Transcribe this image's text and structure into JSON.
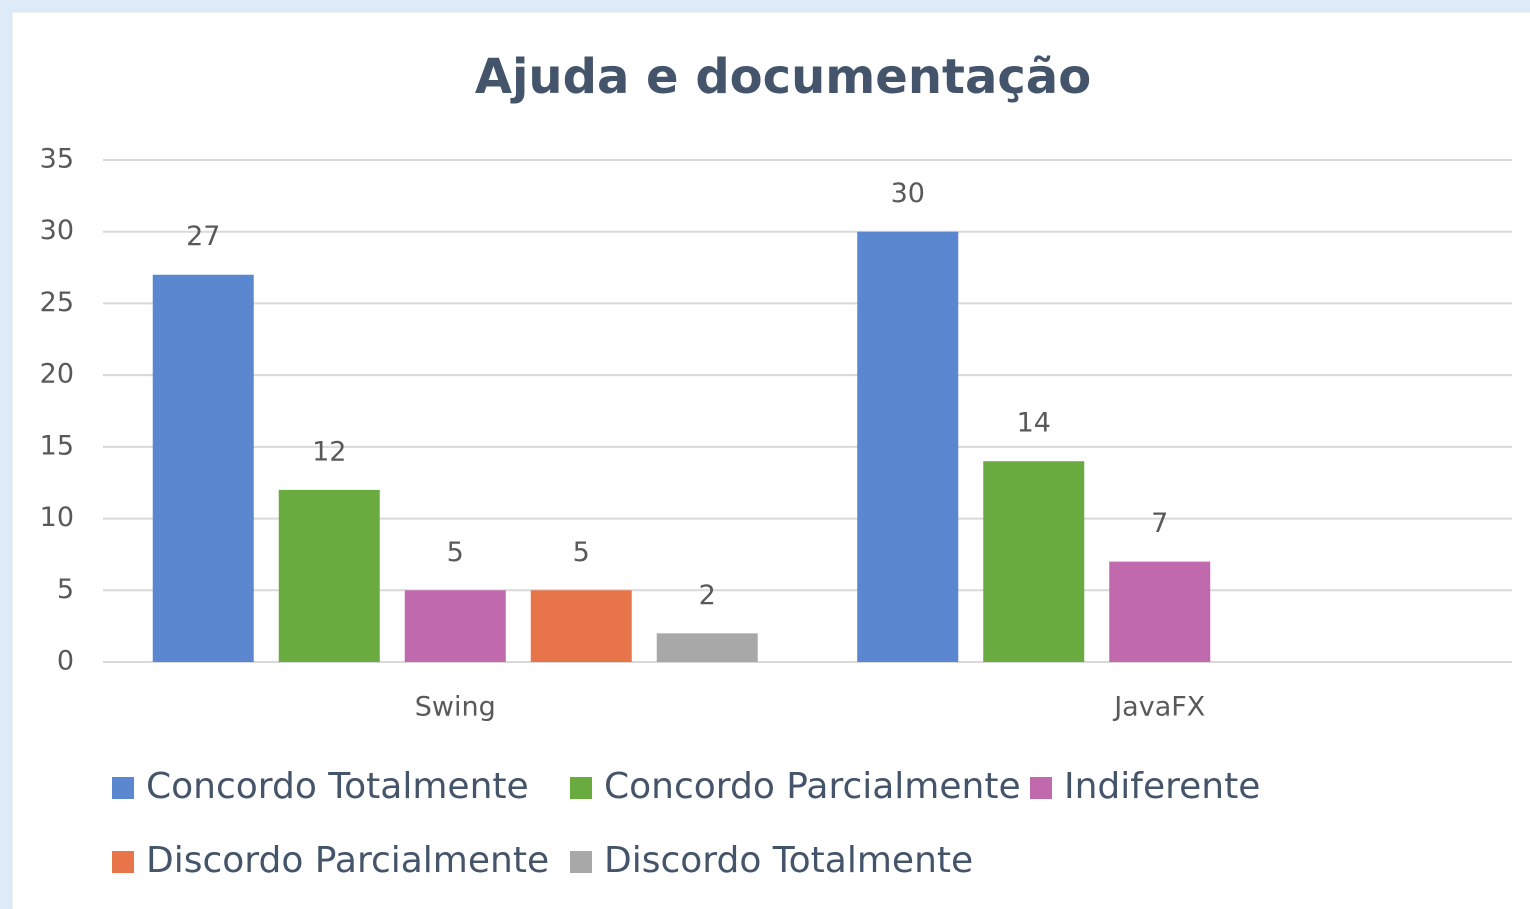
{
  "chart_data": {
    "type": "bar",
    "title": "Ajuda e documentação",
    "categories": [
      "Swing",
      "JavaFX"
    ],
    "series": [
      {
        "name": "Concordo Totalmente",
        "color": "#5b86d0",
        "values": [
          27,
          30
        ]
      },
      {
        "name": "Concordo Parcialmente",
        "color": "#6aab3f",
        "values": [
          12,
          14
        ]
      },
      {
        "name": "Indiferente",
        "color": "#c06aad",
        "values": [
          5,
          7
        ]
      },
      {
        "name": "Discordo Parcialmente",
        "color": "#e8744a",
        "values": [
          5,
          null
        ]
      },
      {
        "name": "Discordo Totalmente",
        "color": "#a8a8a8",
        "values": [
          2,
          null
        ]
      }
    ],
    "ylim": [
      0,
      35
    ],
    "yticks": [
      0,
      5,
      10,
      15,
      20,
      25,
      30,
      35
    ],
    "grid": true,
    "legend": "bottom"
  }
}
